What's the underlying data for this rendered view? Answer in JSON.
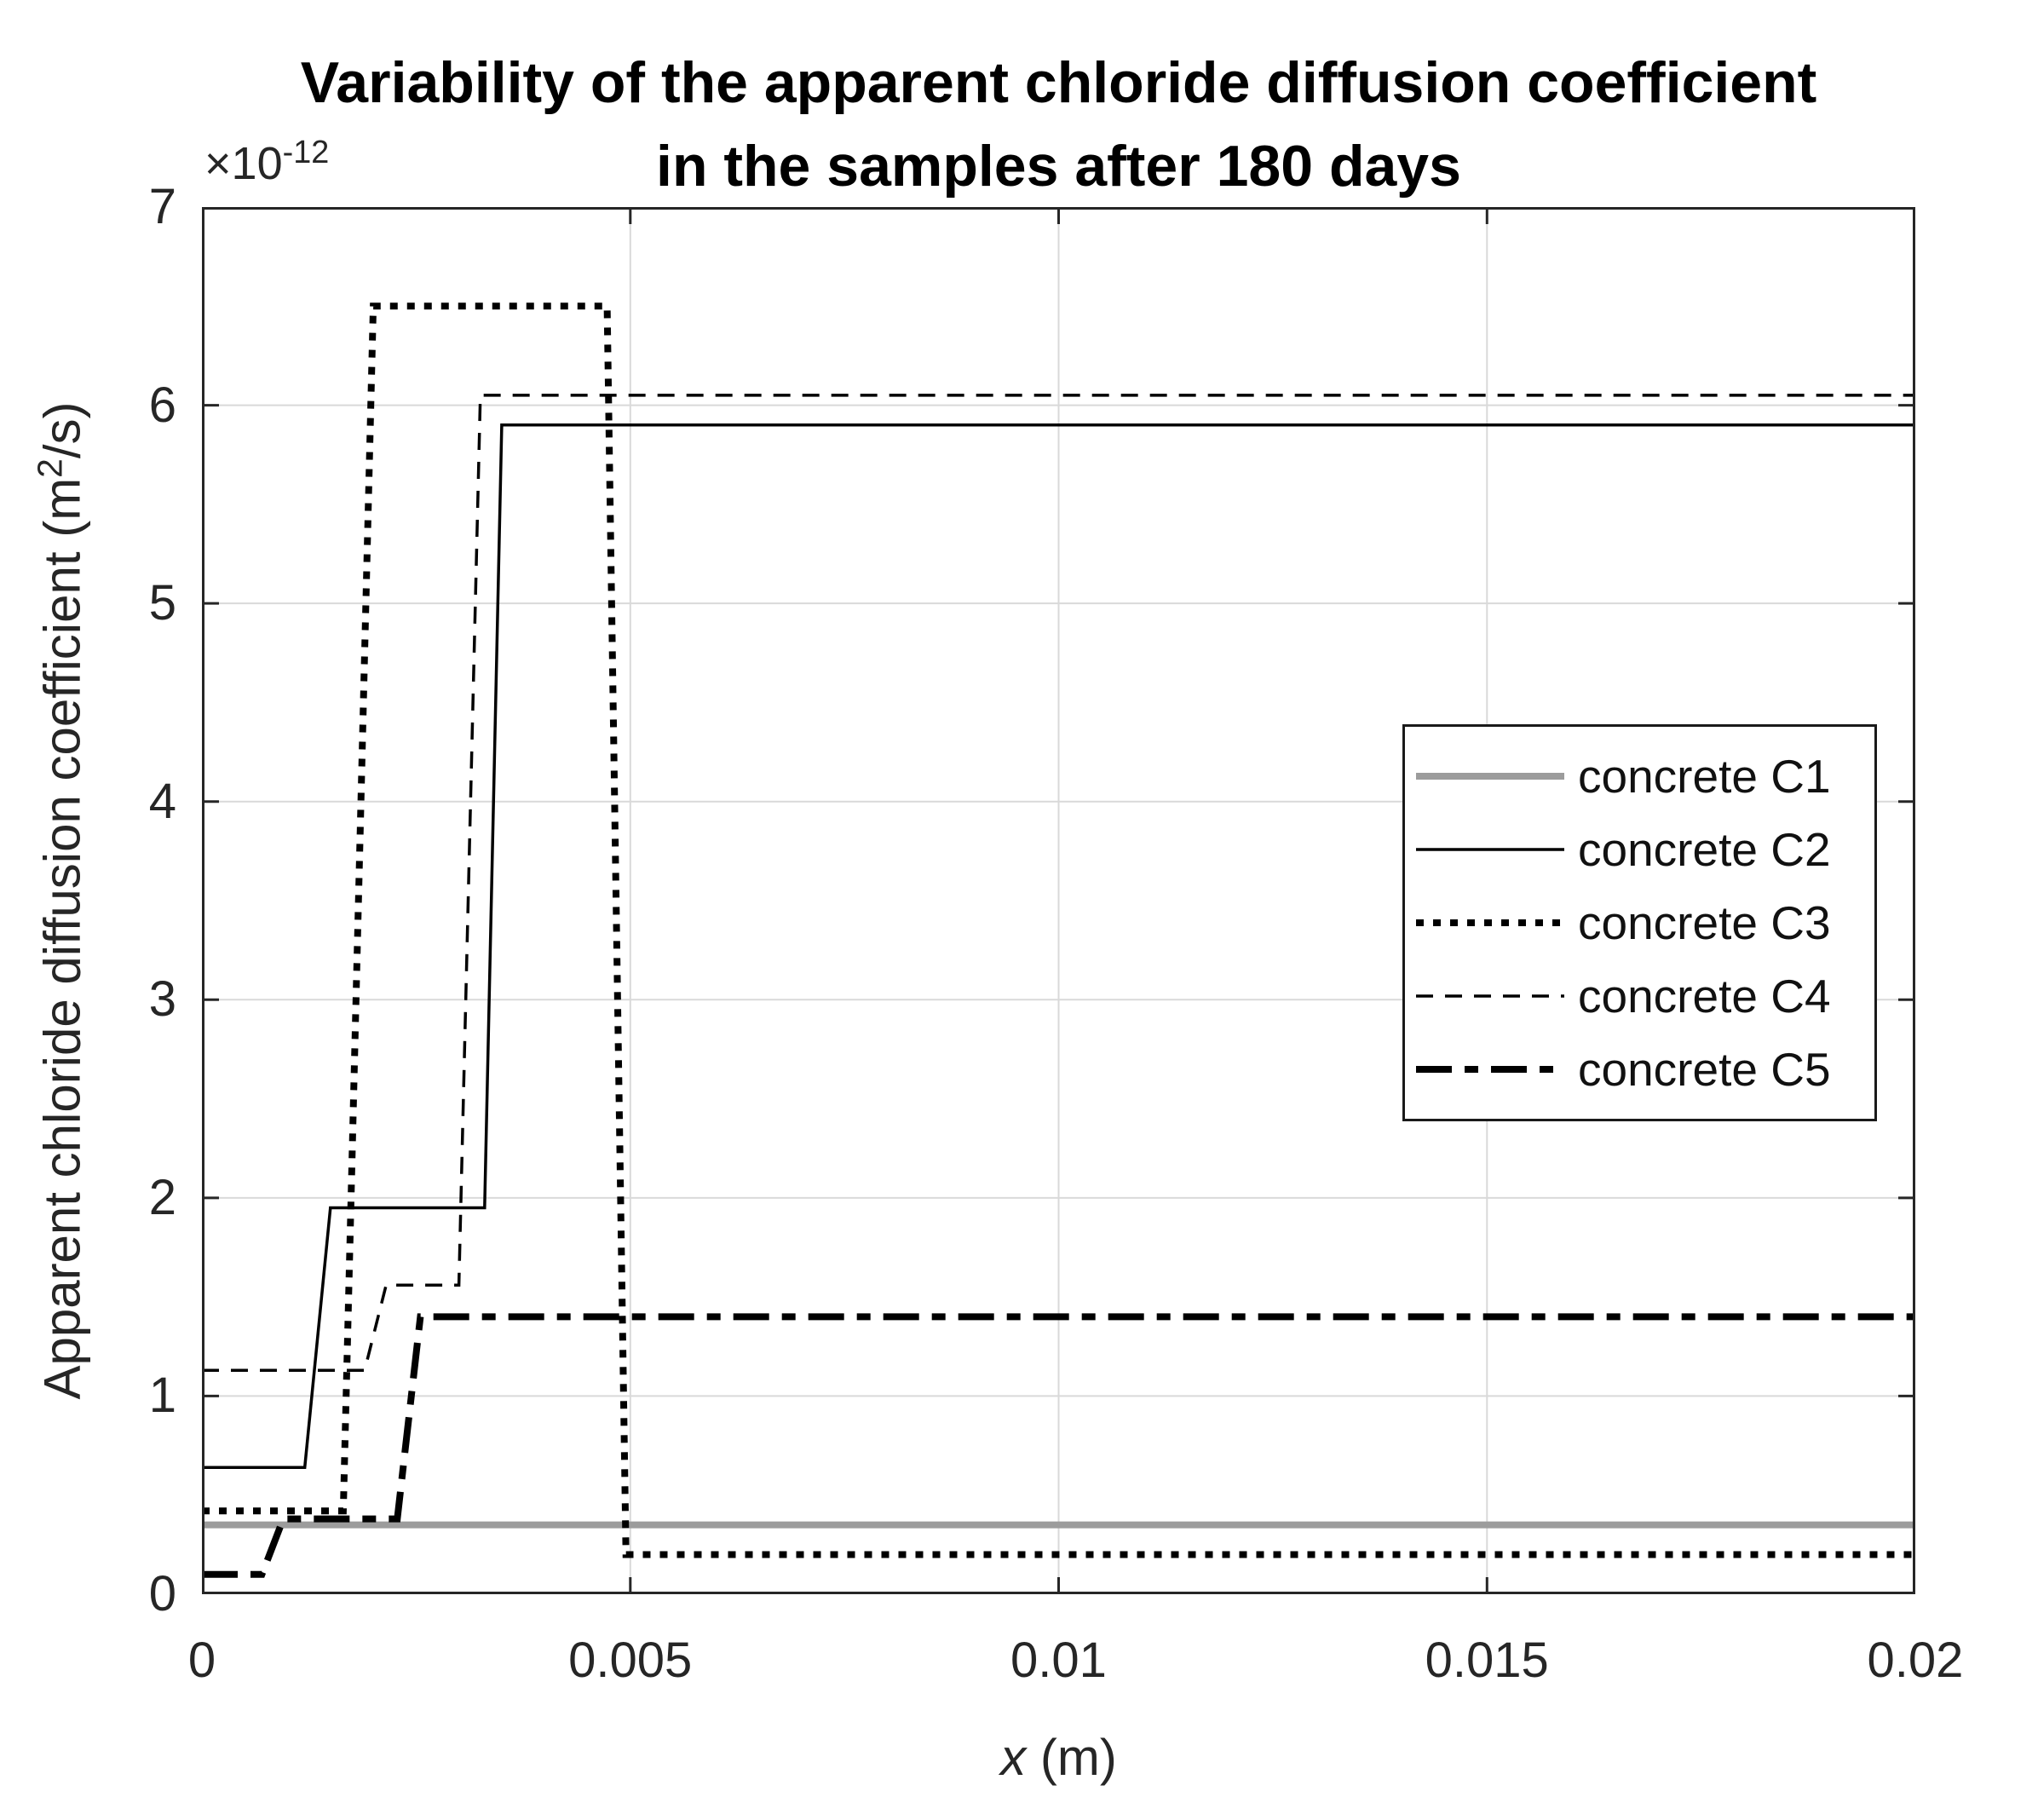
{
  "chart_data": {
    "type": "line",
    "title": "Variability of the apparent chloride diffusion coefficient in the samples after 180 days",
    "title_lines": [
      "Variability of the apparent chloride diffusion coefficient",
      "in the samples after 180 days"
    ],
    "xlabel": {
      "var": "x",
      "rest": " (m)"
    },
    "ylabel": {
      "pre": "Apparent chloride diffusion coefficient (m",
      "sup": "2",
      "post": "/s)"
    },
    "y_offset": {
      "base": "×10",
      "exp": "-12"
    },
    "y_unit": "×10⁻¹² m²/s",
    "xlim": [
      0,
      0.02
    ],
    "ylim": [
      0,
      7
    ],
    "grid": true,
    "legend_position": "inside middle-right",
    "x_ticks": {
      "values": [
        0,
        0.005,
        0.01,
        0.015,
        0.02
      ],
      "labels": [
        "0",
        "0.005",
        "0.01",
        "0.015",
        "0.02"
      ]
    },
    "y_ticks": {
      "values": [
        0,
        1,
        2,
        3,
        4,
        5,
        6,
        7
      ],
      "labels": [
        "0",
        "1",
        "2",
        "3",
        "4",
        "5",
        "6",
        "7"
      ]
    },
    "series": [
      {
        "name": "concrete C1",
        "color": "#9c9c9c",
        "line_style": "solid",
        "line_width": 8,
        "points": [
          [
            0,
            0.35
          ],
          [
            0.02,
            0.35
          ]
        ]
      },
      {
        "name": "concrete C2",
        "color": "#000000",
        "line_style": "solid",
        "line_width": 3.5,
        "points": [
          [
            0,
            0.64
          ],
          [
            0.0012,
            0.64
          ],
          [
            0.0015,
            1.95
          ],
          [
            0.0033,
            1.95
          ],
          [
            0.0035,
            5.9
          ],
          [
            0.02,
            5.9
          ]
        ]
      },
      {
        "name": "concrete C3",
        "color": "#000000",
        "line_style": "dotted",
        "line_width": 8,
        "points": [
          [
            0,
            0.42
          ],
          [
            0.00165,
            0.42
          ],
          [
            0.002,
            6.5
          ],
          [
            0.00473,
            6.5
          ],
          [
            0.00495,
            0.2
          ],
          [
            0.02,
            0.2
          ]
        ]
      },
      {
        "name": "concrete C4",
        "color": "#000000",
        "line_style": "dashed",
        "line_width": 3.5,
        "points": [
          [
            0,
            1.13
          ],
          [
            0.0019,
            1.13
          ],
          [
            0.00215,
            1.56
          ],
          [
            0.003,
            1.56
          ],
          [
            0.00325,
            6.05
          ],
          [
            0.02,
            6.05
          ]
        ]
      },
      {
        "name": "concrete C5",
        "color": "#000000",
        "line_style": "dashdot",
        "line_width": 8,
        "points": [
          [
            0,
            0.1
          ],
          [
            0.0007,
            0.1
          ],
          [
            0.00095,
            0.38
          ],
          [
            0.00228,
            0.38
          ],
          [
            0.00255,
            1.4
          ],
          [
            0.02,
            1.4
          ]
        ]
      }
    ]
  }
}
